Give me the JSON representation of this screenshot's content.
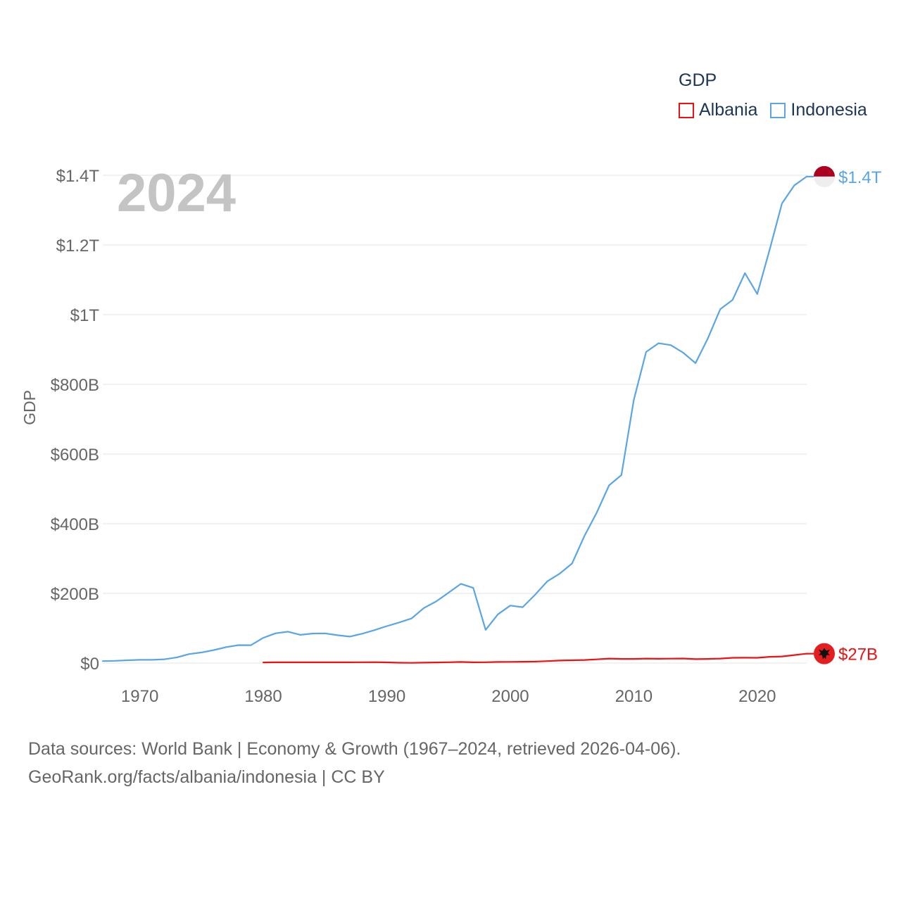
{
  "legend": {
    "title": "GDP",
    "entries": [
      {
        "name": "Albania",
        "color": "#ee1111"
      },
      {
        "name": "Indonesia",
        "color": "#5aa5e6"
      }
    ]
  },
  "footer": {
    "line1": "Data sources: World Bank | Economy & Growth (1967–2024, retrieved 2026-04-06).",
    "line2": "GeoRank.org/facts/albania/indonesia | CC BY"
  },
  "colors": {
    "albania": "#ee1111",
    "indonesia": "#5aa5e6",
    "year_watermark": "#c4c4c4",
    "grid": "#e6e6e6",
    "axis_text": "#666666",
    "flag_albania": "#e41e20",
    "flag_indonesia_top": "#ad0021",
    "flag_indonesia_bottom": "#eeeeee"
  },
  "icons": {
    "albania_marker": "albania-flag-icon",
    "indonesia_marker": "indonesia-flag-icon"
  },
  "chart_data": {
    "type": "line",
    "title": "",
    "current_year": "2024",
    "xlabel": "",
    "ylabel": "GDP",
    "xlim": [
      1967,
      2024
    ],
    "ylim": [
      0,
      1400
    ],
    "y_unit": "billions USD",
    "x_ticks": [
      1970,
      1980,
      1990,
      2000,
      2010,
      2020
    ],
    "y_ticks": [
      {
        "value": 0,
        "label": "$0"
      },
      {
        "value": 200,
        "label": "$200B"
      },
      {
        "value": 400,
        "label": "$400B"
      },
      {
        "value": 600,
        "label": "$600B"
      },
      {
        "value": 800,
        "label": "$800B"
      },
      {
        "value": 1000,
        "label": "$1T"
      },
      {
        "value": 1200,
        "label": "$1.2T"
      },
      {
        "value": 1400,
        "label": "$1.4T"
      }
    ],
    "series": [
      {
        "name": "Indonesia",
        "color": "#5aa5e6",
        "end_label": "$1.4T",
        "x": [
          1967,
          1968,
          1969,
          1970,
          1971,
          1972,
          1973,
          1974,
          1975,
          1976,
          1977,
          1978,
          1979,
          1980,
          1981,
          1982,
          1983,
          1984,
          1985,
          1986,
          1987,
          1988,
          1989,
          1990,
          1991,
          1992,
          1993,
          1994,
          1995,
          1996,
          1997,
          1998,
          1999,
          2000,
          2001,
          2002,
          2003,
          2004,
          2005,
          2006,
          2007,
          2008,
          2009,
          2010,
          2011,
          2012,
          2013,
          2014,
          2015,
          2016,
          2017,
          2018,
          2019,
          2020,
          2021,
          2022,
          2023,
          2024
        ],
        "values": [
          5.7,
          6.5,
          8,
          9.2,
          9.3,
          10.9,
          16.3,
          25.8,
          30.5,
          37.3,
          45.8,
          51.5,
          51.3,
          72.5,
          85.5,
          90.2,
          81.1,
          84.9,
          85.3,
          79.9,
          75.9,
          84.3,
          94.5,
          106.1,
          116.6,
          128,
          158,
          176.9,
          202.1,
          227.4,
          215.7,
          95.4,
          140,
          165,
          160.4,
          195.7,
          234.8,
          256.8,
          285.9,
          364.6,
          432.2,
          510.2,
          539.6,
          755.1,
          892.9,
          917.9,
          912.5,
          890.8,
          860.9,
          931.9,
          1015.6,
          1042.3,
          1119.1,
          1059.1,
          1186.5,
          1319.1,
          1371.2,
          1396.3
        ]
      },
      {
        "name": "Albania",
        "color": "#ee1111",
        "end_label": "$27B",
        "x": [
          1980,
          1981,
          1982,
          1983,
          1984,
          1985,
          1986,
          1987,
          1988,
          1989,
          1990,
          1991,
          1992,
          1993,
          1994,
          1995,
          1996,
          1997,
          1998,
          1999,
          2000,
          2001,
          2002,
          2003,
          2004,
          2005,
          2006,
          2007,
          2008,
          2009,
          2010,
          2011,
          2012,
          2013,
          2014,
          2015,
          2016,
          2017,
          2018,
          2019,
          2020,
          2021,
          2022,
          2023,
          2024
        ],
        "values": [
          1.9,
          2.2,
          2.3,
          2.3,
          2.3,
          2.3,
          2.3,
          2.3,
          2.4,
          2.6,
          2.1,
          1.1,
          0.7,
          1.2,
          1.9,
          2.4,
          3.2,
          2.3,
          2.5,
          3.2,
          3.5,
          3.9,
          4.3,
          5.6,
          7.2,
          8.1,
          8.9,
          10.7,
          12.9,
          12,
          11.9,
          12.9,
          12.3,
          12.8,
          13.2,
          11.4,
          11.9,
          13,
          15.2,
          15.4,
          15.2,
          18,
          19,
          23,
          27
        ]
      }
    ]
  }
}
